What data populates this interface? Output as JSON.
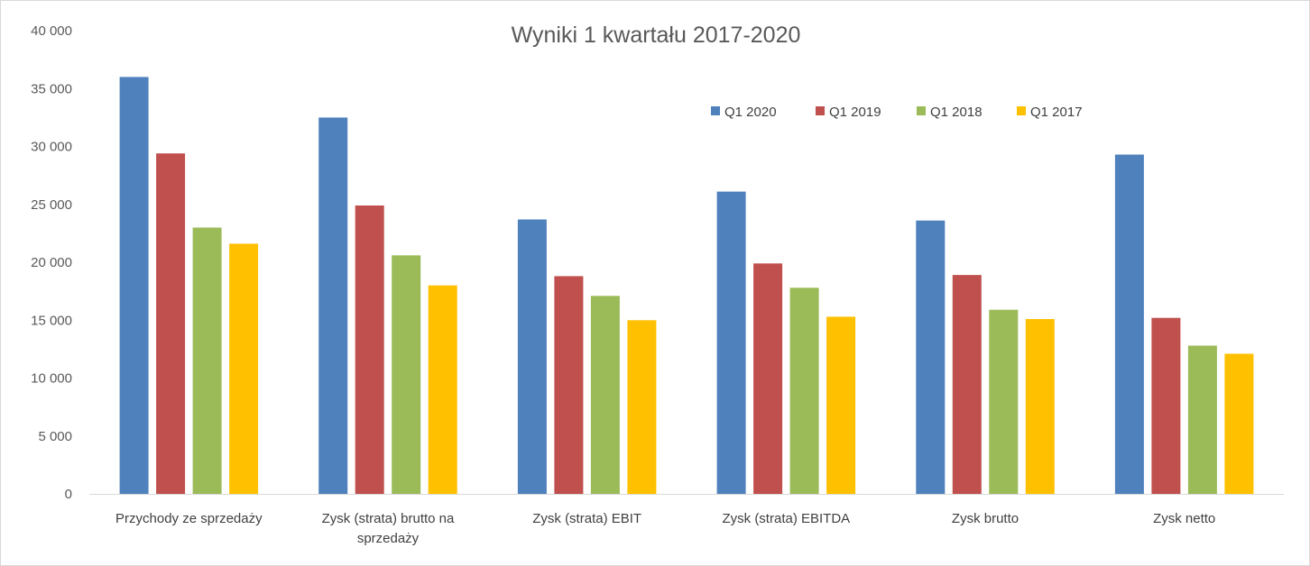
{
  "chart_data": {
    "type": "bar",
    "title": "Wyniki 1 kwartału 2017-2020",
    "xlabel": "",
    "ylabel": "",
    "ylim": [
      0,
      40000
    ],
    "yticks": [
      0,
      5000,
      10000,
      15000,
      20000,
      25000,
      30000,
      35000,
      40000
    ],
    "ytick_labels": [
      "0",
      "5 000",
      "10 000",
      "15 000",
      "20 000",
      "25 000",
      "30 000",
      "35 000",
      "40 000"
    ],
    "grid": false,
    "legend_position": "top-right",
    "categories": [
      "Przychody ze sprzedaży",
      "Zysk (strata) brutto na sprzedaży",
      "Zysk (strata) EBIT",
      "Zysk (strata) EBITDA",
      "Zysk brutto",
      "Zysk netto"
    ],
    "category_lines": [
      [
        "Przychody ze sprzedaży"
      ],
      [
        "Zysk (strata) brutto na",
        "sprzedaży"
      ],
      [
        "Zysk (strata) EBIT"
      ],
      [
        "Zysk (strata) EBITDA"
      ],
      [
        "Zysk brutto"
      ],
      [
        "Zysk netto"
      ]
    ],
    "series": [
      {
        "name": "Q1 2020",
        "color": "#4f81bd",
        "values": [
          36000,
          32500,
          23700,
          26100,
          23600,
          29300
        ]
      },
      {
        "name": "Q1 2019",
        "color": "#c0504d",
        "values": [
          29400,
          24900,
          18800,
          19900,
          18900,
          15200
        ]
      },
      {
        "name": "Q1 2018",
        "color": "#9bbb59",
        "values": [
          23000,
          20600,
          17100,
          17800,
          15900,
          12800
        ]
      },
      {
        "name": "Q1 2017",
        "color": "#ffc000",
        "values": [
          21600,
          18000,
          15000,
          15300,
          15100,
          12100
        ]
      }
    ]
  }
}
